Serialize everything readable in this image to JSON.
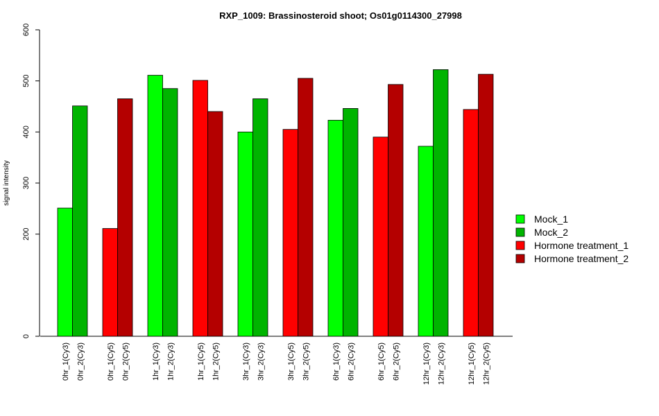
{
  "chart_data": {
    "type": "bar",
    "title": "RXP_1009: Brassinosteroid shoot; Os01g0114300_27998",
    "ylabel": "signal intensity",
    "xlabel": "",
    "ylim": [
      0,
      600
    ],
    "yticks": [
      0,
      200,
      300,
      400,
      500,
      600
    ],
    "grid": false,
    "legend_position": "right",
    "legend": [
      {
        "name": "Mock_1",
        "color": "#00ff00"
      },
      {
        "name": "Mock_2",
        "color": "#00b400"
      },
      {
        "name": "Hormone treatment_1",
        "color": "#ff0000"
      },
      {
        "name": "Hormone treatment_2",
        "color": "#b40000"
      }
    ],
    "bars": [
      {
        "label": "0hr_1(Cy3)",
        "value": 251,
        "series": "Mock_1"
      },
      {
        "label": "0hr_2(Cy3)",
        "value": 451,
        "series": "Mock_2"
      },
      {
        "label": "0hr_1(Cy5)",
        "value": 211,
        "series": "Hormone treatment_1"
      },
      {
        "label": "0hr_2(Cy5)",
        "value": 465,
        "series": "Hormone treatment_2"
      },
      {
        "label": "1hr_1(Cy3)",
        "value": 511,
        "series": "Mock_1"
      },
      {
        "label": "1hr_2(Cy3)",
        "value": 485,
        "series": "Mock_2"
      },
      {
        "label": "1hr_1(Cy5)",
        "value": 501,
        "series": "Hormone treatment_1"
      },
      {
        "label": "1hr_2(Cy5)",
        "value": 440,
        "series": "Hormone treatment_2"
      },
      {
        "label": "3hr_1(Cy3)",
        "value": 400,
        "series": "Mock_1"
      },
      {
        "label": "3hr_2(Cy3)",
        "value": 465,
        "series": "Mock_2"
      },
      {
        "label": "3hr_1(Cy5)",
        "value": 405,
        "series": "Hormone treatment_1"
      },
      {
        "label": "3hr_2(Cy5)",
        "value": 505,
        "series": "Hormone treatment_2"
      },
      {
        "label": "6hr_1(Cy3)",
        "value": 423,
        "series": "Mock_1"
      },
      {
        "label": "6hr_2(Cy3)",
        "value": 446,
        "series": "Mock_2"
      },
      {
        "label": "6hr_1(Cy5)",
        "value": 390,
        "series": "Hormone treatment_1"
      },
      {
        "label": "6hr_2(Cy5)",
        "value": 493,
        "series": "Hormone treatment_2"
      },
      {
        "label": "12hr_1(Cy3)",
        "value": 372,
        "series": "Mock_1"
      },
      {
        "label": "12hr_2(Cy3)",
        "value": 522,
        "series": "Mock_2"
      },
      {
        "label": "12hr_1(Cy5)",
        "value": 444,
        "series": "Hormone treatment_1"
      },
      {
        "label": "12hr_2(Cy5)",
        "value": 513,
        "series": "Hormone treatment_2"
      }
    ]
  }
}
